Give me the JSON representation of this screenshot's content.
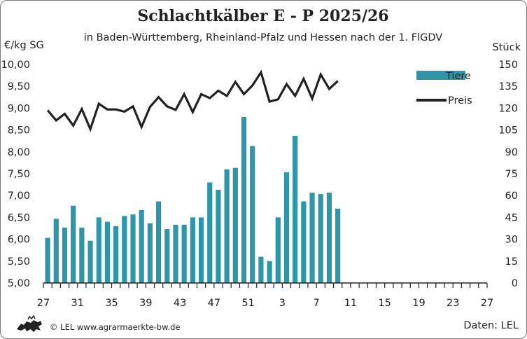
{
  "chart_data": {
    "type": "bar+line",
    "title": "Schlachtkälber E - P 2025/26",
    "subtitle": "in Baden-Württemberg, Rheinland-Pfalz und Hessen nach der 1. FlGDV",
    "ylabel_left": "€/kg SG",
    "ylabel_right": "Stück",
    "y_left": {
      "min": 5.0,
      "max": 10.0,
      "step": 0.5,
      "ticks": [
        "5,00",
        "5,50",
        "6,00",
        "6,50",
        "7,00",
        "7,50",
        "8,00",
        "8,50",
        "9,00",
        "9,50",
        "10,00"
      ]
    },
    "y_right": {
      "min": 0,
      "max": 150,
      "step": 15,
      "ticks": [
        "0",
        "15",
        "30",
        "45",
        "60",
        "75",
        "90",
        "105",
        "120",
        "135",
        "150"
      ]
    },
    "weeks": [
      27,
      28,
      29,
      30,
      31,
      32,
      33,
      34,
      35,
      36,
      37,
      38,
      39,
      40,
      41,
      42,
      43,
      44,
      45,
      46,
      47,
      48,
      49,
      50,
      51,
      52,
      1,
      2,
      3,
      4,
      5,
      6,
      7,
      8,
      9,
      10,
      11,
      12,
      13,
      14,
      15,
      16,
      17,
      18,
      19,
      20,
      21,
      22,
      23,
      24,
      25,
      26,
      27
    ],
    "x_tick_labels": [
      "27",
      "31",
      "35",
      "39",
      "43",
      "47",
      "51",
      "3",
      "7",
      "11",
      "15",
      "19",
      "23",
      "27"
    ],
    "series": [
      {
        "name": "Tiere",
        "kind": "bar",
        "axis": "right",
        "color": "#2e96a8",
        "values": [
          31,
          44,
          38,
          53,
          38,
          29,
          45,
          42,
          39,
          46,
          47,
          50,
          41,
          56,
          37,
          40,
          40,
          45,
          45,
          69,
          64,
          78,
          79,
          114,
          94,
          18,
          15,
          45,
          76,
          101,
          56,
          62,
          61,
          62,
          51
        ]
      },
      {
        "name": "Preis",
        "kind": "line",
        "axis": "left",
        "color": "#222222",
        "values": [
          8.95,
          8.72,
          8.87,
          8.6,
          8.98,
          8.52,
          9.1,
          8.97,
          8.97,
          8.92,
          9.04,
          8.57,
          9.03,
          9.25,
          9.04,
          8.96,
          9.32,
          8.91,
          9.32,
          9.23,
          9.4,
          9.28,
          9.6,
          9.32,
          9.52,
          9.82,
          9.15,
          9.2,
          9.55,
          9.28,
          9.67,
          9.22,
          9.77,
          9.44,
          9.62
        ]
      }
    ],
    "legend": {
      "position": "top-right",
      "entries": [
        "Tiere",
        "Preis"
      ]
    },
    "grid": false
  },
  "footer": {
    "copyright": "© LEL www.agrarmaerkte-bw.de",
    "source": "Daten: LEL",
    "logo_icon": "lion-logo-icon"
  }
}
